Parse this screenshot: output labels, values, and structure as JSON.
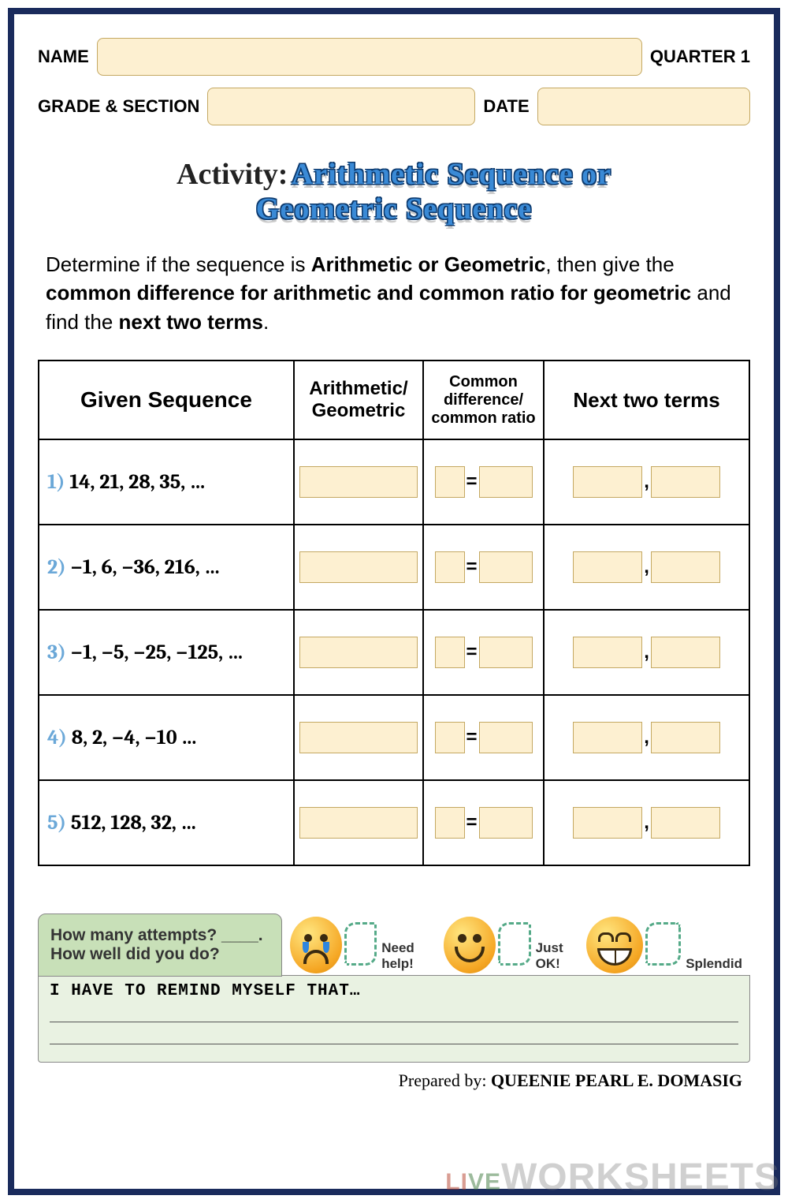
{
  "header": {
    "name_label": "NAME",
    "quarter_label": "QUARTER 1",
    "grade_label": "GRADE & SECTION",
    "date_label": "DATE"
  },
  "title": {
    "activity_prefix": "Activity:",
    "line1": "Arithmetic Sequence or",
    "line2": "Geometric Sequence"
  },
  "instructions": {
    "pre": "Determine if the sequence is ",
    "bold1": "Arithmetic or Geometric",
    "mid1": ", then give the ",
    "bold2": "common difference for arithmetic and common ratio for geometric",
    "mid2": " and find the ",
    "bold3": "next two terms",
    "post": "."
  },
  "table": {
    "headers": {
      "col1": "Given Sequence",
      "col2": "Arithmetic/ Geometric",
      "col3": "Common difference/ common ratio",
      "col4": "Next two terms"
    },
    "rows": [
      {
        "num": "1)",
        "seq": "14, 21, 28, 35, …"
      },
      {
        "num": "2)",
        "seq": "−1, 6, −36, 216, …"
      },
      {
        "num": "3)",
        "seq": "−1, −5, −25, −125, …"
      },
      {
        "num": "4)",
        "seq": "8, 2, −4,  −10 …"
      },
      {
        "num": "5)",
        "seq": "512, 128, 32, …"
      }
    ],
    "eq": "=",
    "comma": ","
  },
  "feedback": {
    "attempts_q": "How many attempts? ____.",
    "howwell_q": "How well did you do?",
    "labels": {
      "cry": "Need help!",
      "ok": "Just OK!",
      "splendid": "Splendid"
    },
    "remind_title": "I HAVE TO REMIND MYSELF THAT…"
  },
  "footer": {
    "prepared_label": "Prepared by:",
    "author": "QUEENIE PEARL E. DOMASIG"
  },
  "watermark": {
    "li": "LI",
    "ve": "VE",
    "text": "WORKSHEETS"
  },
  "styling": {
    "border_color": "#1a2b5c",
    "input_bg": "#fdf0d1",
    "input_border": "#c4a862",
    "title_color": "#3a8ad6",
    "title_outline": "#0d3a6e",
    "seq_num_color": "#6ba8d8",
    "attempts_bg": "#c8e0b8",
    "remind_bg": "#e9f2e2",
    "emoji_gradient": [
      "#ffe680",
      "#f5a623",
      "#d68910"
    ],
    "font_body": "Arial",
    "font_math": "Cambria"
  }
}
